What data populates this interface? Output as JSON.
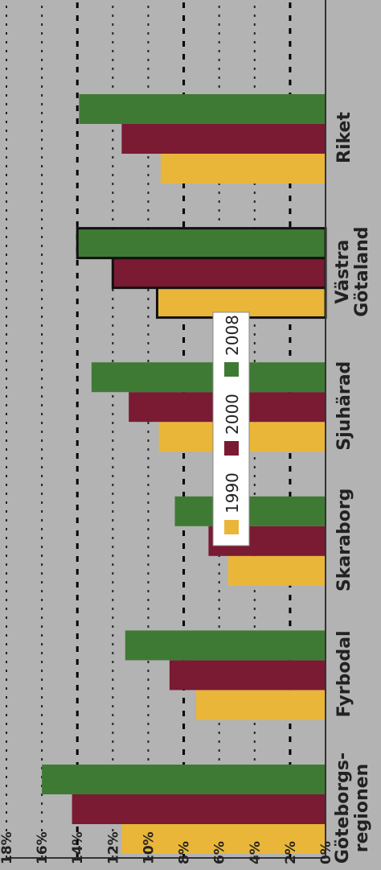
{
  "chart_data": {
    "type": "bar",
    "orientation": "horizontal",
    "categories": [
      "Göteborgs-regionen",
      "Fyrbodal",
      "Skaraborg",
      "Sjuhärad",
      "Västra Götaland",
      "Riket"
    ],
    "category_lines": [
      [
        "Göteborgs-",
        "regionen"
      ],
      [
        "Fyrbodal"
      ],
      [
        "Skaraborg"
      ],
      [
        "Sjuhärad"
      ],
      [
        "Västra",
        "Götaland"
      ],
      [
        "Riket"
      ]
    ],
    "series": [
      {
        "name": "1990",
        "color": "#e9b63a",
        "values": [
          11.5,
          7.3,
          5.5,
          9.4,
          9.5,
          9.3
        ]
      },
      {
        "name": "2000",
        "color": "#7a1a33",
        "values": [
          14.3,
          8.8,
          6.6,
          11.1,
          12.0,
          11.5
        ]
      },
      {
        "name": "2008",
        "color": "#3f7a34",
        "values": [
          16.0,
          11.3,
          8.5,
          13.2,
          14.0,
          13.9
        ]
      }
    ],
    "highlighted_category": "Västra Götaland",
    "xlim": [
      0,
      18
    ],
    "ticks": [
      "0%",
      "2%",
      "4%",
      "6%",
      "8%",
      "10%",
      "12%",
      "14%",
      "16%",
      "18%"
    ],
    "tick_values": [
      0,
      2,
      4,
      6,
      8,
      10,
      12,
      14,
      16,
      18
    ],
    "grid": "dashed",
    "legend": {
      "position": "top-left",
      "entries": [
        "1990",
        "2000",
        "2008"
      ]
    },
    "title": "",
    "xlabel": "",
    "ylabel": ""
  }
}
